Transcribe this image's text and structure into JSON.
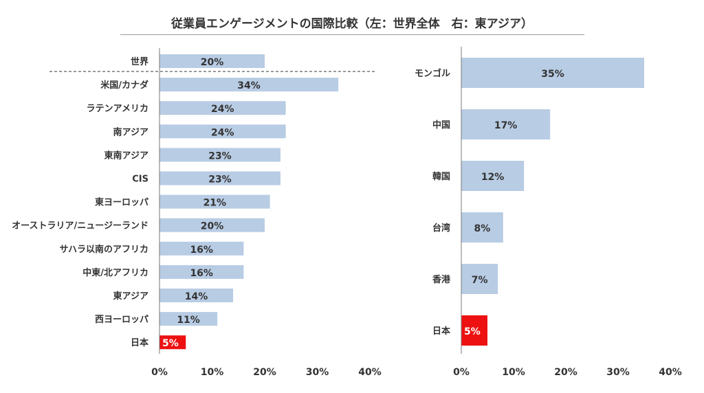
{
  "chart_data": [
    {
      "type": "bar",
      "orientation": "horizontal",
      "title": "従業員エンゲージメントの国際比較（左：世界全体　右：東アジア）",
      "categories": [
        "世界",
        "米国/カナダ",
        "ラテンアメリカ",
        "南アジア",
        "東南アジア",
        "CIS",
        "東ヨーロッパ",
        "オーストラリア/ニュージーランド",
        "サハラ以南のアフリカ",
        "中東/北アフリカ",
        "東アジア",
        "西ヨーロッパ",
        "日本"
      ],
      "values": [
        20,
        34,
        24,
        24,
        23,
        23,
        21,
        20,
        16,
        16,
        14,
        11,
        5
      ],
      "data_labels": [
        "20%",
        "34%",
        "24%",
        "24%",
        "23%",
        "23%",
        "21%",
        "20%",
        "16%",
        "16%",
        "14%",
        "11%",
        "5%"
      ],
      "highlight": "日本",
      "xlim": [
        0,
        40
      ],
      "x_ticks": [
        "0%",
        "10%",
        "20%",
        "30%",
        "40%"
      ],
      "grid": false,
      "separator_after": "世界"
    },
    {
      "type": "bar",
      "orientation": "horizontal",
      "categories": [
        "モンゴル",
        "中国",
        "韓国",
        "台湾",
        "香港",
        "日本"
      ],
      "values": [
        35,
        17,
        12,
        8,
        7,
        5
      ],
      "data_labels": [
        "35%",
        "17%",
        "12%",
        "8%",
        "7%",
        "5%"
      ],
      "highlight": "日本",
      "xlim": [
        0,
        40
      ],
      "x_ticks": [
        "0%",
        "10%",
        "20%",
        "30%",
        "40%"
      ],
      "grid": false
    }
  ],
  "colors": {
    "bar": "#b8cce4",
    "highlight": "#ee1111",
    "highlight_text": "#ffffff"
  }
}
